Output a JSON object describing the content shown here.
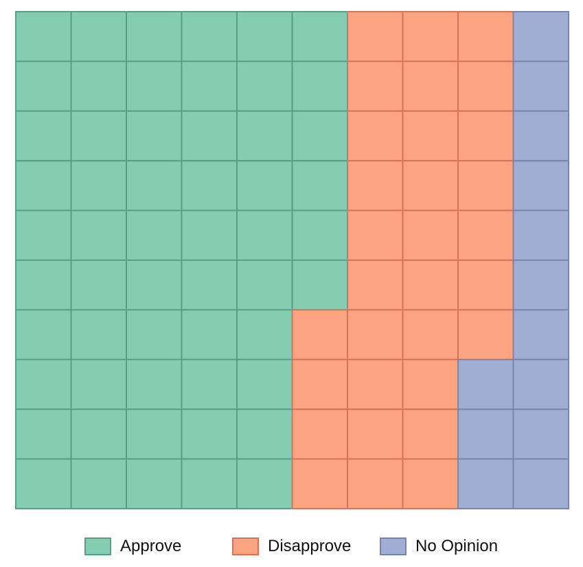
{
  "chart_data": {
    "type": "waffle",
    "title": "",
    "grid": {
      "rows": 10,
      "columns": 10,
      "fill_order": "column-major, top-to-bottom, left-to-right"
    },
    "categories": [
      "Approve",
      "Disapprove",
      "No Opinion"
    ],
    "values": [
      56,
      31,
      13
    ],
    "unit": "cells out of 100",
    "colors": [
      "#84cdb3",
      "#fba47f",
      "#a0aed3"
    ],
    "edge_colors": [
      "#5a9e86",
      "#d67259",
      "#7985b0"
    ],
    "legend": {
      "placement": "bottom-center"
    }
  }
}
